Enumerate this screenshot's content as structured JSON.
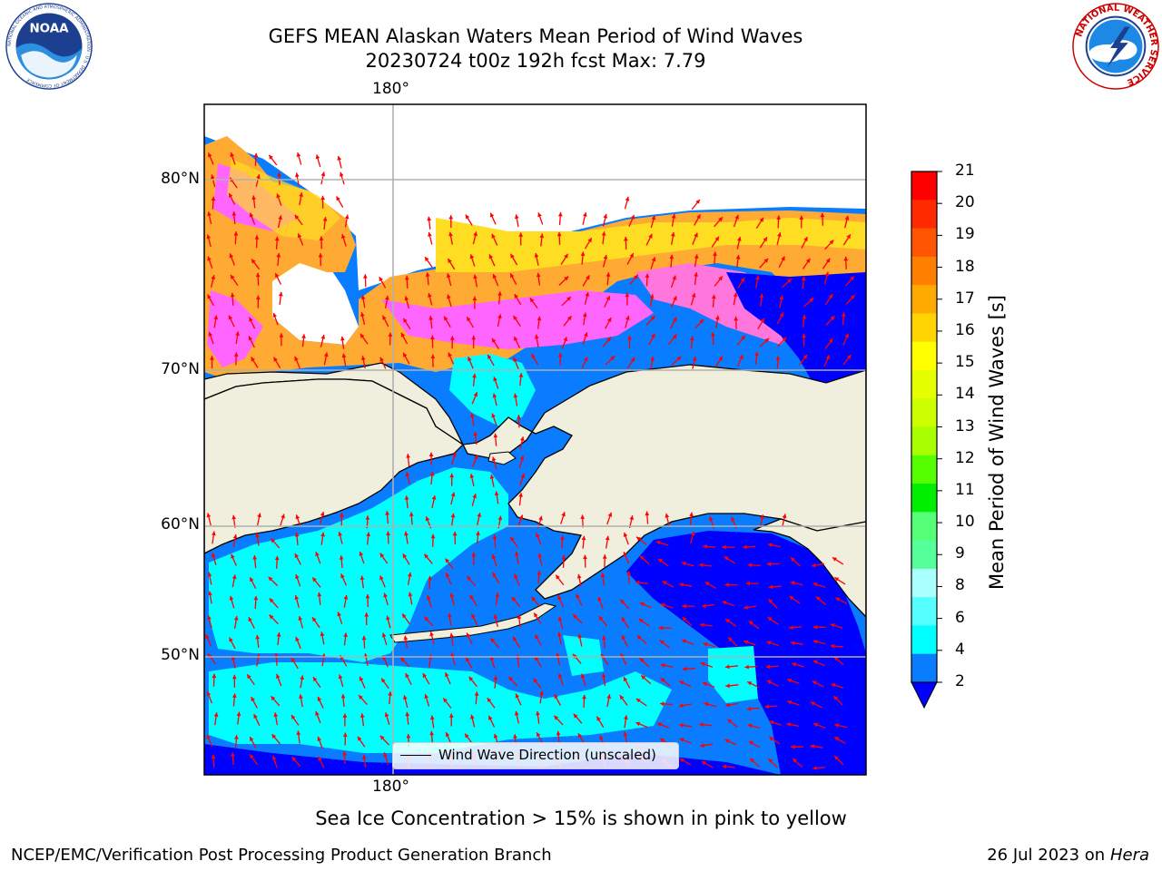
{
  "title": {
    "line1": "GEFS MEAN Alaskan Waters Mean Period of Wind Waves",
    "line2": "20230724 t00z 192h fcst   Max: 7.79"
  },
  "logos": {
    "left": "noaa-logo",
    "right": "national-weather-service-logo",
    "left_text": "NOAA",
    "left_ring_text": "NATIONAL OCEANIC AND ATMOSPHERIC ADMINISTRATION · U.S. DEPARTMENT OF COMMERCE",
    "right_ring_text": "NATIONAL WEATHER SERVICE"
  },
  "map": {
    "longitude_label_top": "180°",
    "longitude_label_bottom": "180°",
    "latitude_labels": [
      "80°N",
      "70°N",
      "60°N",
      "50°N"
    ],
    "legend_label": "Wind Wave Direction (unscaled)",
    "colors": {
      "land": "#f0eedc",
      "ocean_low": "#0a7cff",
      "ocean_lowest": "#0000ff",
      "cyan": "#00ffff",
      "ice_pink": "#ff66ff",
      "ice_orange": "#ffaa33",
      "ice_yellow": "#ffdd22",
      "arrow": "#ff0000",
      "grid": "#b0b0b0"
    }
  },
  "colorbar": {
    "label": "Mean Period of Wind Waves [s]",
    "ticks": [
      "21",
      "20",
      "19",
      "18",
      "17",
      "16",
      "15",
      "14",
      "13",
      "12",
      "11",
      "10",
      "9",
      "8",
      "6",
      "4",
      "2"
    ],
    "colors": [
      "#ff0000",
      "#ff2a00",
      "#ff5500",
      "#ff7f00",
      "#ffaa00",
      "#ffd400",
      "#ffff00",
      "#e5ff00",
      "#ccff00",
      "#a8ff00",
      "#55ff00",
      "#00ee00",
      "#55ff77",
      "#55ff99",
      "#aaffff",
      "#55ffff",
      "#00ffff",
      "#0a7cff"
    ],
    "extend_color": "#0000ff"
  },
  "sea_ice_note": "Sea Ice Concentration > 15% is shown in pink to yellow",
  "footer": {
    "left": "NCEP/EMC/Verification Post Processing Product Generation Branch",
    "right_date": "26 Jul 2023 on ",
    "right_host": "Hera"
  }
}
